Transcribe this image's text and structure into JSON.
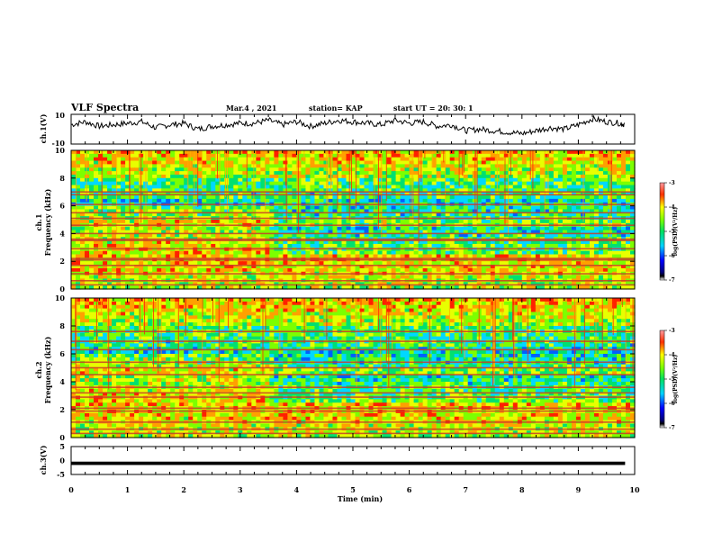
{
  "header": {
    "title": "VLF Spectra",
    "date": "Mar.4 , 2021",
    "station": "station= KAP",
    "start": "start  UT =   20: 30: 1"
  },
  "chart_data": [
    {
      "type": "line",
      "panel": "ch1-waveform",
      "ylabel": "ch.1(V)",
      "ylim": [
        -10,
        10
      ],
      "ytick_labels": [
        "10",
        "-10"
      ],
      "note": "time series of ch.1 amplitude vs time",
      "x": [
        0,
        0.25,
        0.5,
        0.75,
        1,
        1.25,
        1.5,
        1.75,
        2,
        2.25,
        2.5,
        2.75,
        3,
        3.25,
        3.5,
        3.75,
        4,
        4.25,
        4.5,
        4.75,
        5,
        5.25,
        5.5,
        5.75,
        6,
        6.25,
        6.5,
        6.75,
        7,
        7.25,
        7.5,
        7.75,
        8,
        8.25,
        8.5,
        8.75,
        9,
        9.25,
        9.5,
        9.75,
        9.83
      ],
      "values": [
        3,
        5,
        2,
        3,
        4,
        5,
        1,
        3,
        4,
        0,
        2,
        3,
        4,
        4,
        6,
        3,
        5,
        2,
        4,
        6,
        5,
        4,
        3,
        6,
        4,
        5,
        2,
        3,
        -1,
        0,
        -1,
        -2,
        -3,
        -1,
        1,
        0,
        3,
        7,
        5,
        4,
        3
      ]
    },
    {
      "type": "heatmap",
      "panel": "ch1-spectrogram",
      "ylabel": "ch.1\nFrequency  (kHz)",
      "ylim": [
        0,
        10
      ],
      "yticks": [
        "0",
        "2",
        "4",
        "6",
        "8",
        "10"
      ],
      "colorbar": {
        "label": "log(PSD)(V²/Hz)",
        "range": [
          -7,
          -3
        ],
        "ticks": [
          "-3",
          "-4",
          "-5",
          "-6",
          "-7"
        ]
      },
      "line_freqs_khz": [
        0.3,
        0.6,
        1.1,
        1.7,
        2.1,
        2.2,
        2.9,
        3.5,
        3.6,
        4.0,
        4.6,
        5.1,
        5.5,
        6.1,
        6.8,
        7.0
      ]
    },
    {
      "type": "heatmap",
      "panel": "ch2-spectrogram",
      "ylabel": "ch.2\nFrequency  (kHz)",
      "ylim": [
        0,
        10
      ],
      "yticks": [
        "0",
        "2",
        "4",
        "6",
        "8",
        "10"
      ],
      "colorbar": {
        "label": "log(PSD)(V²/Hz)",
        "range": [
          -7,
          -3
        ],
        "ticks": [
          "-3",
          "-4",
          "-5",
          "-6",
          "-7"
        ]
      },
      "line_freqs_khz": [
        0.3,
        0.6,
        1.1,
        1.9,
        2.1,
        2.9,
        3.2,
        3.6,
        4.5,
        5.0,
        5.4,
        6.3,
        6.9,
        7.6
      ]
    },
    {
      "type": "line",
      "panel": "ch3-waveform",
      "ylabel": "ch.3(V)",
      "ylim": [
        -5,
        5
      ],
      "ytick_labels": [
        "5",
        "0",
        "-5"
      ],
      "x": [
        0,
        9.83
      ],
      "values": [
        -1,
        -1
      ],
      "band_thickness_v": 1.2
    }
  ],
  "xaxis": {
    "label": "Time  (min)",
    "tick_labels": [
      "0",
      "1",
      "2",
      "3",
      "4",
      "5",
      "6",
      "7",
      "8",
      "9",
      "10"
    ],
    "range": [
      0,
      10
    ]
  },
  "colors": {
    "frame": "#000000",
    "trace": "#000000"
  }
}
